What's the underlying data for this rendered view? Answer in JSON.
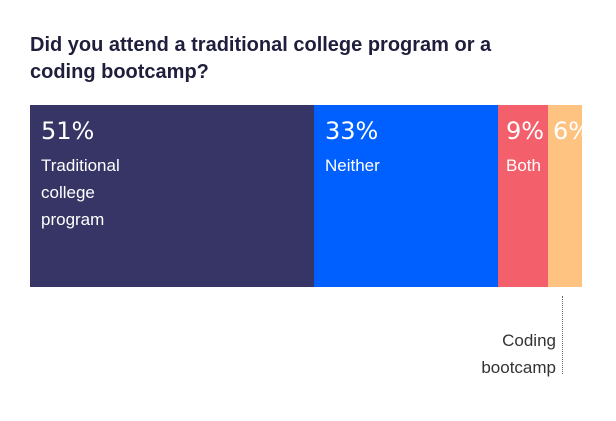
{
  "chart_data": {
    "type": "bar",
    "orientation": "horizontal-stacked-100",
    "title": "Did you attend a traditional college program or a coding bootcamp?",
    "categories": [
      "Traditional college program",
      "Neither",
      "Both",
      "Coding bootcamp"
    ],
    "values": [
      51,
      33,
      9,
      6
    ],
    "series": [
      {
        "name": "Traditional college program",
        "value": 51,
        "value_label": "51%",
        "label": "Traditional\ncollege\nprogram",
        "color": "#363566"
      },
      {
        "name": "Neither",
        "value": 33,
        "value_label": "33%",
        "label": "Neither",
        "color": "#0060ff"
      },
      {
        "name": "Both",
        "value": 9,
        "value_label": "9%",
        "label": "Both",
        "color": "#f35f6b"
      },
      {
        "name": "Coding bootcamp",
        "value": 6,
        "value_label": "6%",
        "label": "",
        "color": "#fec380"
      }
    ],
    "annotation": "Coding\nbootcamp",
    "unit": "%",
    "grid": false,
    "legend": "none"
  }
}
